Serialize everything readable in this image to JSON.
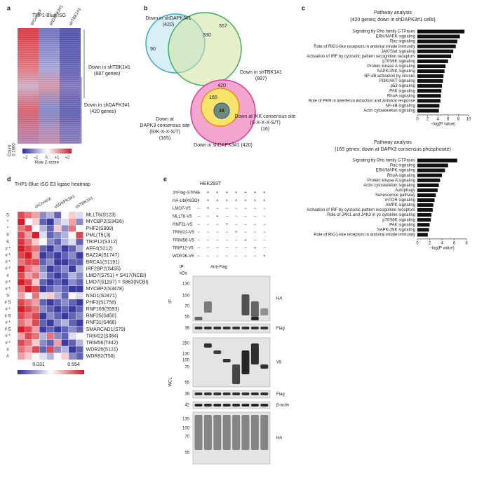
{
  "panels": {
    "a": {
      "label": "a",
      "title": "THP1-Blue ISG",
      "columns": [
        "shControl",
        "shDAPK3#1",
        "shTBK1#1"
      ],
      "groups": [
        [
          "Down in shTBK1#1",
          "(887 genes)"
        ],
        [
          "Down in shDAPK3#1",
          "(420 genes)"
        ]
      ],
      "count_label": "Count",
      "count_ticks": [
        "0",
        "1000"
      ],
      "scale_ticks": [
        "−2",
        "−1",
        "0",
        "+1",
        "+2"
      ],
      "scale_title": "Row Z-score"
    },
    "b": {
      "label": "b",
      "top": {
        "dapk3": [
          "Down in shDAPK3#1",
          "(420)"
        ],
        "tbk1": [
          "Down in shTBK1#1",
          "(887)"
        ],
        "only_tbk1": "557",
        "both": "330",
        "only_dapk3": "90"
      },
      "bottom": {
        "total": "420",
        "dapk3_site_count": "165",
        "ikk_site_count": "16",
        "dapk3_site": [
          "Down at",
          "DAPK3 consensus site",
          "(R/K-X-X-S/T)",
          "(165)"
        ],
        "ikk_site": [
          "Down at IKK consensus site",
          "(S-X-X-X-S/T)",
          "(16)"
        ],
        "all": "Down in shDAPK3#1 (420)"
      }
    },
    "c": {
      "label": "c",
      "charts": [
        {
          "title": [
            "Pathway analysis",
            "(420 genes; down in shDAPK3#1 cells)"
          ],
          "categories": [
            "Signaling by Rho family GTPases",
            "ERK/MAPK signaling",
            "Rac signaling",
            "Role of RIG1-like receptors in antiviral innate immunity",
            "JAK/Stat signaling",
            "Activation of IRF by cytosolic pattern recognition receptors",
            "p70S6K signaling",
            "Protein kinase A signaling",
            "SAPK/JNK signaling",
            "NF-κB activation by viruses",
            "PI3K/AKT signaling",
            "p53 signaling",
            "PAK signaling",
            "RhoA signaling",
            "Role of PKR in interferon induction and antiviral response",
            "NF-κB signaling",
            "Actin cytoskeleton signaling"
          ],
          "values": [
            9.2,
            8.3,
            7.8,
            7.5,
            7.0,
            6.6,
            6.0,
            5.5,
            5.3,
            5.1,
            5.0,
            4.8,
            4.7,
            4.6,
            4.5,
            4.3,
            4.2
          ],
          "xlim": [
            0,
            10
          ],
          "xticks": [
            0,
            2,
            4,
            6,
            8,
            10
          ],
          "xlabel": "−log(P value)",
          "color": "#111111"
        },
        {
          "title": [
            "Pathway analysis",
            "(165 genes; down at DAPK3 consensus phosphosite)"
          ],
          "categories": [
            "Signaling by Rho family GTPases",
            "Rac signaling",
            "ERK/MAPK signaling",
            "RhoA signaling",
            "Protein kinase A signaling",
            "Actin cytoskeleton signaling",
            "Autophagy",
            "Senescence pathway",
            "mTOR signaling",
            "AMPK signaling",
            "Activation of IRF by cytosolic pattern recognition receptors",
            "Role of JAK1 and JAK3 in γc cytokine signaling",
            "p70S6K signaling",
            "PAK signaling",
            "SAPK/JNK signaling",
            "Role of RIG1-like receptors in antiviral innate immunity"
          ],
          "values": [
            6.5,
            5.0,
            4.5,
            4.0,
            3.7,
            3.5,
            3.3,
            3.0,
            2.8,
            2.6,
            2.5,
            2.3,
            2.2,
            2.0,
            1.9,
            1.7
          ],
          "xlim": [
            0,
            8
          ],
          "xticks": [
            0,
            2,
            4,
            6,
            8
          ],
          "xlabel": "−log(P value)",
          "color": "#111111"
        }
      ]
    },
    "d": {
      "label": "d",
      "title": "THP1-Blue ISG E3 ligase heatmap",
      "columns": [
        "shControl",
        "shDAPK3#1",
        "shTBK1#1"
      ],
      "rows": [
        "MLLT6(S123)",
        "MYCBP2(S3426)",
        "PHF2(S899)",
        "PML(T513)",
        "TRIP12(S312)",
        "AFF4(S212)",
        "BAZ2A(S1747)",
        "BRCA1(S1191)",
        "IRF2BP2(S455)",
        "LMO7(S751) = S417(NCBI)",
        "LMO7(S1197) = S863(NCBI)",
        "MYCBP2(S3478)",
        "NSD1(S2471)",
        "PHF3(S1758)",
        "RNF169(S593)",
        "RNF25(S450)",
        "RNF31(S466)",
        "SMARCAD1(S79)",
        "TRIM22(S384)",
        "TRIM56(T442)",
        "WDR26(S121)",
        "WDR82(T50)"
      ],
      "markers": [
        "S",
        "*",
        "*",
        "S",
        "S",
        "# *",
        "# *",
        "# *",
        "# *",
        "#",
        "# *",
        "# *",
        "S",
        "# S",
        "# *",
        "# S",
        "# *",
        "# S",
        "# *",
        "# *",
        "#",
        "//"
      ],
      "scale": [
        0.031,
        0.554
      ],
      "values": [
        [
          0.5,
          0.45,
          0.4,
          0.15,
          0.2,
          0.1,
          0.3,
          0.35,
          0.25
        ],
        [
          0.55,
          0.3,
          0.35,
          0.1,
          0.05,
          0.2,
          0.25,
          0.4,
          0.15
        ],
        [
          0.45,
          0.5,
          0.3,
          0.2,
          0.1,
          0.35,
          0.15,
          0.45,
          0.3
        ],
        [
          0.5,
          0.4,
          0.55,
          0.25,
          0.1,
          0.15,
          0.2,
          0.3,
          0.5
        ],
        [
          0.52,
          0.45,
          0.35,
          0.3,
          0.15,
          0.1,
          0.2,
          0.25,
          0.1
        ],
        [
          0.55,
          0.5,
          0.45,
          0.1,
          0.05,
          0.15,
          0.05,
          0.1,
          0.2
        ],
        [
          0.5,
          0.55,
          0.4,
          0.05,
          0.1,
          0.05,
          0.1,
          0.15,
          0.05
        ],
        [
          0.45,
          0.5,
          0.5,
          0.1,
          0.15,
          0.05,
          0.05,
          0.1,
          0.1
        ],
        [
          0.55,
          0.45,
          0.4,
          0.15,
          0.05,
          0.1,
          0.15,
          0.05,
          0.2
        ],
        [
          0.5,
          0.4,
          0.45,
          0.2,
          0.1,
          0.05,
          0.1,
          0.2,
          0.15
        ],
        [
          0.55,
          0.5,
          0.35,
          0.1,
          0.05,
          0.1,
          0.05,
          0.15,
          0.1
        ],
        [
          0.45,
          0.55,
          0.5,
          0.05,
          0.1,
          0.15,
          0.1,
          0.05,
          0.05
        ],
        [
          0.4,
          0.3,
          0.45,
          0.25,
          0.35,
          0.2,
          0.1,
          0.3,
          0.25
        ],
        [
          0.5,
          0.45,
          0.4,
          0.1,
          0.05,
          0.1,
          0.15,
          0.1,
          0.05
        ],
        [
          0.55,
          0.5,
          0.45,
          0.15,
          0.1,
          0.05,
          0.1,
          0.05,
          0.1
        ],
        [
          0.5,
          0.45,
          0.5,
          0.05,
          0.15,
          0.1,
          0.05,
          0.1,
          0.15
        ],
        [
          0.45,
          0.4,
          0.5,
          0.1,
          0.05,
          0.15,
          0.2,
          0.1,
          0.05
        ],
        [
          0.55,
          0.5,
          0.4,
          0.05,
          0.1,
          0.05,
          0.1,
          0.15,
          0.1
        ],
        [
          0.4,
          0.5,
          0.45,
          0.2,
          0.45,
          0.15,
          0.1,
          0.25,
          0.3
        ],
        [
          0.5,
          0.45,
          0.35,
          0.15,
          0.1,
          0.4,
          0.05,
          0.1,
          0.2
        ],
        [
          0.45,
          0.4,
          0.5,
          0.1,
          0.5,
          0.15,
          0.2,
          0.05,
          0.1
        ],
        [
          0.4,
          0.35,
          0.3,
          0.25,
          0.2,
          0.3,
          0.35,
          0.15,
          0.1
        ]
      ]
    },
    "e": {
      "label": "e",
      "cell_line": "HEK293T",
      "conditions": [
        {
          "label": "3×Flag-STING",
          "lanes": [
            "+",
            "+",
            "+",
            "+",
            "+",
            "+",
            "+",
            "+"
          ]
        },
        {
          "label": "HA-Ub(K63O)",
          "lanes": [
            "+",
            "+",
            "+",
            "+",
            "+",
            "+",
            "+",
            "+"
          ]
        },
        {
          "label": "LMO7-V5",
          "lanes": [
            "−",
            "+",
            "−",
            "−",
            "−",
            "−",
            "−",
            "−"
          ]
        },
        {
          "label": "MLLT6-V5",
          "lanes": [
            "−",
            "−",
            "+",
            "−",
            "−",
            "−",
            "−",
            "−"
          ]
        },
        {
          "label": "RNF31-V5",
          "lanes": [
            "−",
            "−",
            "−",
            "+",
            "−",
            "−",
            "−",
            "−"
          ]
        },
        {
          "label": "TRIM22-V5",
          "lanes": [
            "−",
            "−",
            "−",
            "−",
            "+",
            "−",
            "−",
            "−"
          ]
        },
        {
          "label": "TRIM56-V5",
          "lanes": [
            "−",
            "−",
            "−",
            "−",
            "−",
            "+",
            "−",
            "−"
          ]
        },
        {
          "label": "TRIP12-V5",
          "lanes": [
            "−",
            "−",
            "−",
            "−",
            "−",
            "−",
            "+",
            "−"
          ]
        },
        {
          "label": "WDR26-V5",
          "lanes": [
            "−",
            "−",
            "−",
            "−",
            "−",
            "−",
            "−",
            "+"
          ]
        }
      ],
      "ip_label": "IP:",
      "ip_antibody": "Anti-Flag",
      "kda": "kDa",
      "sections": [
        "IP",
        "WCL"
      ],
      "blots": [
        {
          "antibody": "HA",
          "markers": [
            130,
            100,
            70,
            55
          ]
        },
        {
          "antibody": "Flag",
          "markers": [
            38
          ]
        },
        {
          "antibody": "V5",
          "markers": [
            250,
            130,
            100,
            70,
            55
          ]
        },
        {
          "antibody": "Flag",
          "markers": [
            38
          ]
        },
        {
          "antibody": "β-actin",
          "markers": [
            42
          ]
        },
        {
          "antibody": "HA",
          "markers": [
            130,
            100,
            70,
            55
          ]
        }
      ]
    }
  }
}
